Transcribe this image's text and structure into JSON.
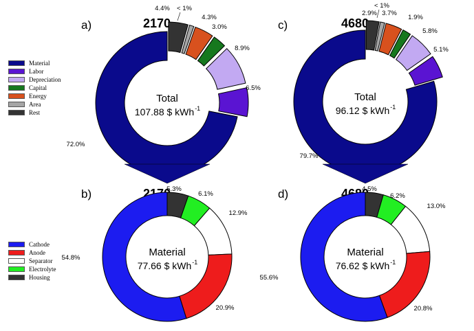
{
  "legend_cost": [
    {
      "label": "Material",
      "color": "#0a0a8c"
    },
    {
      "label": "Labor",
      "color": "#5a14d2"
    },
    {
      "label": "Depreciation",
      "color": "#c2a9f2"
    },
    {
      "label": "Capital",
      "color": "#16781e"
    },
    {
      "label": "Energy",
      "color": "#d8511e"
    },
    {
      "label": "Area",
      "color": "#a6a6a6"
    },
    {
      "label": "Rest",
      "color": "#333333"
    }
  ],
  "legend_material": [
    {
      "label": "Cathode",
      "color": "#1c1cf0"
    },
    {
      "label": "Anode",
      "color": "#ee1c1c"
    },
    {
      "label": "Separator",
      "color": "#ffffff"
    },
    {
      "label": "Electrolyte",
      "color": "#22ee22"
    },
    {
      "label": "Housing",
      "color": "#333333"
    }
  ],
  "chart_data": [
    {
      "type": "pie",
      "panel": "a)",
      "title": "2170",
      "center_label": "Total",
      "center_value": "107.88 $ kWh",
      "center_unit_sup": "-1",
      "categories": [
        "Material",
        "Labor",
        "Depreciation",
        "Capital",
        "Energy",
        "Area",
        "Rest"
      ],
      "values": [
        72.0,
        6.5,
        8.9,
        3.0,
        4.3,
        1.0,
        4.4
      ],
      "labels": [
        "72.0%",
        "6.5%",
        "8.9%",
        "3.0%",
        "4.3%",
        "< 1%",
        "4.4%"
      ],
      "colors": [
        "#0a0a8c",
        "#5a14d2",
        "#c2a9f2",
        "#16781e",
        "#d8511e",
        "#a6a6a6",
        "#333333"
      ],
      "exploded": [
        "Labor",
        "Depreciation",
        "Capital",
        "Energy",
        "Area",
        "Rest"
      ]
    },
    {
      "type": "pie",
      "panel": "c)",
      "title": "4680",
      "center_label": "Total",
      "center_value": "96.12 $ kWh",
      "center_unit_sup": "-1",
      "categories": [
        "Material",
        "Labor",
        "Depreciation",
        "Capital",
        "Energy",
        "Area",
        "Rest"
      ],
      "values": [
        79.7,
        5.1,
        5.8,
        1.9,
        3.7,
        1.0,
        2.9
      ],
      "labels": [
        "79.7%",
        "5.1%",
        "5.8%",
        "1.9%",
        "3.7%",
        "< 1%",
        "2.9%"
      ],
      "colors": [
        "#0a0a8c",
        "#5a14d2",
        "#c2a9f2",
        "#16781e",
        "#d8511e",
        "#a6a6a6",
        "#333333"
      ],
      "exploded": [
        "Labor",
        "Depreciation",
        "Capital",
        "Energy",
        "Area",
        "Rest"
      ]
    },
    {
      "type": "pie",
      "panel": "b)",
      "title": "2170",
      "center_label": "Material",
      "center_value": "77.66 $ kWh",
      "center_unit_sup": "-1",
      "categories": [
        "Cathode",
        "Anode",
        "Separator",
        "Electrolyte",
        "Housing"
      ],
      "values": [
        54.8,
        20.9,
        12.9,
        6.1,
        5.3
      ],
      "labels": [
        "54.8%",
        "20.9%",
        "12.9%",
        "6.1%",
        "5.3%"
      ],
      "colors": [
        "#1c1cf0",
        "#ee1c1c",
        "#ffffff",
        "#22ee22",
        "#333333"
      ]
    },
    {
      "type": "pie",
      "panel": "d)",
      "title": "4680",
      "center_label": "Material",
      "center_value": "76.62 $ kWh",
      "center_unit_sup": "-1",
      "categories": [
        "Cathode",
        "Anode",
        "Separator",
        "Electrolyte",
        "Housing"
      ],
      "values": [
        55.6,
        20.8,
        13.0,
        6.2,
        4.5
      ],
      "labels": [
        "55.6%",
        "20.8%",
        "13.0%",
        "6.2%",
        "4.5%"
      ],
      "colors": [
        "#1c1cf0",
        "#ee1c1c",
        "#ffffff",
        "#22ee22",
        "#333333"
      ]
    }
  ]
}
